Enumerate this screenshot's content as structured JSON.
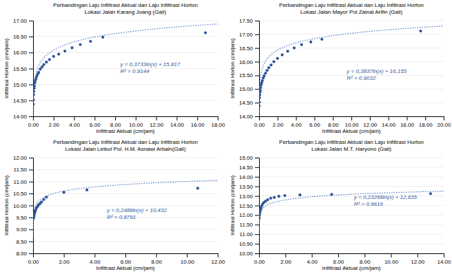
{
  "chart_data": [
    {
      "type": "scatter",
      "title": "Perbandingan Laju Infiltrasi Aktual dan Laju Infiltrasi Horton",
      "subtitle": "Lokasi Jalan  Karang Joang (Gali)",
      "x_label": "Infiltrasi Aktual (cm/jam)",
      "y_label": "Infiltrasi Horton (cm/jam)",
      "x": [
        0.02,
        0.03,
        0.05,
        0.07,
        0.1,
        0.13,
        0.17,
        0.22,
        0.28,
        0.35,
        0.45,
        0.55,
        0.7,
        0.87,
        1.05,
        1.3,
        1.6,
        2.0,
        2.5,
        3.1,
        3.8,
        4.6,
        5.6,
        6.8,
        16.8
      ],
      "values": [
        14.38,
        14.52,
        14.68,
        14.78,
        14.88,
        14.95,
        15.05,
        15.12,
        15.18,
        15.25,
        15.32,
        15.38,
        15.48,
        15.55,
        15.62,
        15.7,
        15.78,
        15.88,
        15.95,
        16.05,
        16.15,
        16.25,
        16.35,
        16.48,
        16.62
      ],
      "color": "#2E5496",
      "marker": "circle",
      "trendline": {
        "a": 0.3733,
        "b": 15.817,
        "color": "#4472C4",
        "line_style": "dotted"
      },
      "annotation": {
        "text": [
          "y = 0,3733ln(x) + 15,817",
          "R² = 0,9144"
        ],
        "x": 8.5,
        "y": 15.52
      },
      "xlim": [
        0,
        18
      ],
      "ylim": [
        14.0,
        17.0
      ],
      "xticks": [
        {
          "value": 0,
          "label": "0.00"
        },
        {
          "value": 2,
          "label": "2.00"
        },
        {
          "value": 4,
          "label": "4.00"
        },
        {
          "value": 6,
          "label": "6.00"
        },
        {
          "value": 8,
          "label": "8.00"
        },
        {
          "value": 10,
          "label": "10.00"
        },
        {
          "value": 12,
          "label": "12.00"
        },
        {
          "value": 14,
          "label": "14.00"
        },
        {
          "value": 16,
          "label": "16.00"
        },
        {
          "value": 18,
          "label": "18.00"
        }
      ],
      "yticks": [
        {
          "value": 14,
          "label": "14.00"
        },
        {
          "value": 14.5,
          "label": "14.50"
        },
        {
          "value": 15,
          "label": "15.00"
        },
        {
          "value": 15.5,
          "label": "15.50"
        },
        {
          "value": 16,
          "label": "16.00"
        },
        {
          "value": 16.5,
          "label": "16.50"
        },
        {
          "value": 17,
          "label": "17.00"
        }
      ],
      "grid": "y"
    },
    {
      "type": "scatter",
      "title": "Perbandingan Laju Infiltrasi Aktual dan Laju Infiltrasi Horton",
      "subtitle": "Lokasi Jalan  Mayor Pol Zainal Arifin (Gali)",
      "x_label": "Infiltrasi Aktual (cm/jam)",
      "y_label": "Infiltrasi Horton (cm/jam)",
      "x": [
        0.02,
        0.03,
        0.05,
        0.07,
        0.1,
        0.13,
        0.17,
        0.22,
        0.28,
        0.35,
        0.45,
        0.55,
        0.7,
        0.87,
        1.05,
        1.3,
        1.6,
        2.0,
        2.5,
        3.1,
        3.8,
        4.6,
        5.6,
        6.8,
        17.5
      ],
      "values": [
        14.38,
        14.52,
        14.68,
        14.78,
        14.88,
        14.95,
        15.05,
        15.15,
        15.22,
        15.3,
        15.4,
        15.48,
        15.58,
        15.68,
        15.78,
        15.88,
        16.0,
        16.12,
        16.25,
        16.38,
        16.5,
        16.62,
        16.72,
        16.82,
        17.12
      ],
      "color": "#2E5496",
      "marker": "circle",
      "trendline": {
        "a": 0.3837,
        "b": 16.155,
        "color": "#4472C4",
        "line_style": "dotted"
      },
      "annotation": {
        "text": [
          "y = 0,3837ln(x) + 16,155",
          "R² = 0,9032"
        ],
        "x": 9.5,
        "y": 15.52
      },
      "xlim": [
        0,
        20
      ],
      "ylim": [
        14.0,
        17.5
      ],
      "xticks": [
        {
          "value": 0,
          "label": "0.00"
        },
        {
          "value": 2,
          "label": "2.00"
        },
        {
          "value": 4,
          "label": "4.00"
        },
        {
          "value": 6,
          "label": "6.00"
        },
        {
          "value": 8,
          "label": "8.00"
        },
        {
          "value": 10,
          "label": "10.00"
        },
        {
          "value": 12,
          "label": "12.00"
        },
        {
          "value": 14,
          "label": "14.00"
        },
        {
          "value": 16,
          "label": "16.00"
        },
        {
          "value": 18,
          "label": "18.00"
        },
        {
          "value": 20,
          "label": "20.00"
        }
      ],
      "yticks": [
        {
          "value": 14,
          "label": "14.00"
        },
        {
          "value": 14.5,
          "label": "14.50"
        },
        {
          "value": 15,
          "label": "15.00"
        },
        {
          "value": 15.5,
          "label": "15.50"
        },
        {
          "value": 16,
          "label": "16.00"
        },
        {
          "value": 16.5,
          "label": "16.50"
        },
        {
          "value": 17,
          "label": "17.00"
        },
        {
          "value": 17.5,
          "label": "17.50"
        }
      ],
      "grid": "y"
    },
    {
      "type": "scatter",
      "title": "Perbandingan Laju Infiltrasi Aktual dan Laju Infiltrasi Horton",
      "subtitle": "Lokasi Jalan Letkol Pol. H.M. Asnawi Arbain(Gali)",
      "x_label": "Infiltrasi Aktual (cm/jam)",
      "y_label": "Infiltrasi Horton (cm/jam)",
      "x": [
        0.02,
        0.03,
        0.05,
        0.07,
        0.1,
        0.13,
        0.17,
        0.22,
        0.28,
        0.35,
        0.45,
        0.55,
        0.7,
        0.87,
        2.0,
        3.5,
        10.7
      ],
      "values": [
        9.45,
        9.5,
        9.55,
        9.6,
        9.68,
        9.75,
        9.82,
        9.9,
        9.95,
        10.02,
        10.08,
        10.15,
        10.25,
        10.35,
        10.55,
        10.65,
        10.72
      ],
      "color": "#2E5496",
      "marker": "circle",
      "trendline": {
        "a": 0.2488,
        "b": 10.432,
        "color": "#4472C4",
        "line_style": "dotted"
      },
      "annotation": {
        "text": [
          "y = 0,2488ln(x) + 10,432",
          "R² = 0,8791"
        ],
        "x": 4.8,
        "y": 9.65
      },
      "xlim": [
        0,
        12
      ],
      "ylim": [
        8.0,
        12.0
      ],
      "xticks": [
        {
          "value": 0,
          "label": "0.00"
        },
        {
          "value": 2,
          "label": "2.00"
        },
        {
          "value": 4,
          "label": "4.00"
        },
        {
          "value": 6,
          "label": "6.00"
        },
        {
          "value": 8,
          "label": "8.00"
        },
        {
          "value": 10,
          "label": "10.00"
        },
        {
          "value": 12,
          "label": "12.00"
        }
      ],
      "yticks": [
        {
          "value": 8,
          "label": "8.00"
        },
        {
          "value": 8.5,
          "label": "8.50"
        },
        {
          "value": 9,
          "label": "9.00"
        },
        {
          "value": 9.5,
          "label": "9.50"
        },
        {
          "value": 10,
          "label": "10.00"
        },
        {
          "value": 10.5,
          "label": "10.50"
        },
        {
          "value": 11,
          "label": "11.00"
        },
        {
          "value": 11.5,
          "label": "11.50"
        },
        {
          "value": 12,
          "label": "12.00"
        }
      ],
      "grid": "y"
    },
    {
      "type": "scatter",
      "title": "Perbandingan Laju Infiltrasi Aktual dan Laju Infiltrasi Horton",
      "subtitle": "Lokasi Jalan M.T. Haryono (Gali)",
      "x_label": "Infiltrasi Aktual (cm/jam)",
      "y_label": "Infiltrasi Horton (cm/jam)",
      "x": [
        0.02,
        0.04,
        0.06,
        0.09,
        0.13,
        0.18,
        0.25,
        0.35,
        0.48,
        0.65,
        0.88,
        1.15,
        1.5,
        1.95,
        3.1,
        5.5,
        13.0
      ],
      "values": [
        11.85,
        12.02,
        12.15,
        12.25,
        12.35,
        12.45,
        12.55,
        12.65,
        12.72,
        12.8,
        12.88,
        12.92,
        12.98,
        13.02,
        13.05,
        13.08,
        13.12
      ],
      "color": "#2E5496",
      "marker": "circle",
      "trendline": {
        "a": 0.23268,
        "b": 12.635,
        "color": "#4472C4",
        "line_style": "dotted"
      },
      "annotation": {
        "text": [
          "y = 0,23268ln(x) + 12,635",
          "R² = 0,9616"
        ],
        "x": 7.2,
        "y": 12.72
      },
      "xlim": [
        0,
        14
      ],
      "ylim": [
        10.0,
        15.0
      ],
      "xticks": [
        {
          "value": 0,
          "label": "0.00"
        },
        {
          "value": 2,
          "label": "2.00"
        },
        {
          "value": 4,
          "label": "4.00"
        },
        {
          "value": 6,
          "label": "6.00"
        },
        {
          "value": 8,
          "label": "8.00"
        },
        {
          "value": 10,
          "label": "10.00"
        },
        {
          "value": 12,
          "label": "12.00"
        },
        {
          "value": 14,
          "label": "14.00"
        }
      ],
      "yticks": [
        {
          "value": 10,
          "label": "10.00"
        },
        {
          "value": 10.5,
          "label": "10.50"
        },
        {
          "value": 11,
          "label": "11.00"
        },
        {
          "value": 11.5,
          "label": "11.50"
        },
        {
          "value": 12,
          "label": "12.00"
        },
        {
          "value": 12.5,
          "label": "12.50"
        },
        {
          "value": 13,
          "label": "13.00"
        },
        {
          "value": 13.5,
          "label": "13.50"
        },
        {
          "value": 14,
          "label": "14.00"
        },
        {
          "value": 14.5,
          "label": "14.50"
        },
        {
          "value": 15,
          "label": "15.00"
        }
      ],
      "grid": "y"
    }
  ]
}
